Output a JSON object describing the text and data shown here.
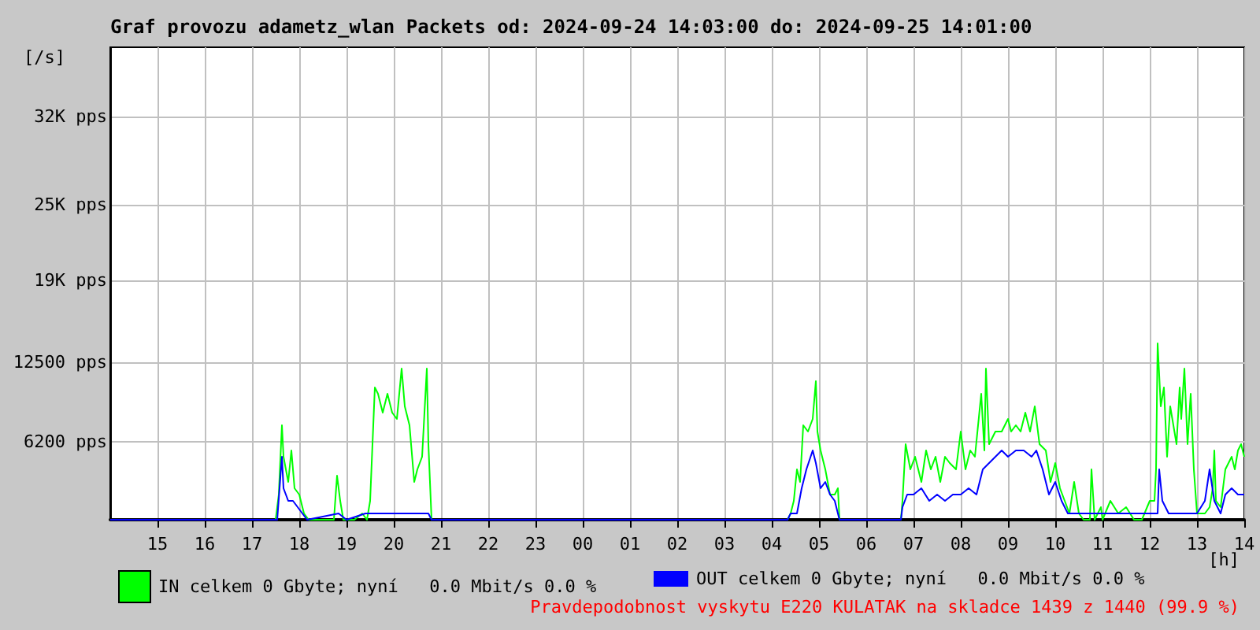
{
  "chart_data": {
    "type": "line",
    "title": "Graf provozu adametz_wlan Packets od: 2024-09-24 14:03:00 do: 2024-09-25 14:01:00",
    "xlabel": "[h]",
    "ylabel": "[/s]",
    "annotations": [
      "Pravdepodobnost vyskytu E220 KULATAK na skladce 1439 z 1440 (99.9 %)"
    ],
    "xlim": [
      "2024-09-24T14:00",
      "2024-09-25T14:00"
    ],
    "xticks": [
      {
        "value": "2024-09-24T15:00",
        "label": "15"
      },
      {
        "value": "2024-09-24T16:00",
        "label": "16"
      },
      {
        "value": "2024-09-24T17:00",
        "label": "17"
      },
      {
        "value": "2024-09-24T18:00",
        "label": "18"
      },
      {
        "value": "2024-09-24T19:00",
        "label": "19"
      },
      {
        "value": "2024-09-24T20:00",
        "label": "20"
      },
      {
        "value": "2024-09-24T21:00",
        "label": "21"
      },
      {
        "value": "2024-09-24T22:00",
        "label": "22"
      },
      {
        "value": "2024-09-24T23:00",
        "label": "23"
      },
      {
        "value": "2024-09-25T00:00",
        "label": "00"
      },
      {
        "value": "2024-09-25T01:00",
        "label": "01"
      },
      {
        "value": "2024-09-25T02:00",
        "label": "02"
      },
      {
        "value": "2024-09-25T03:00",
        "label": "03"
      },
      {
        "value": "2024-09-25T04:00",
        "label": "04"
      },
      {
        "value": "2024-09-25T05:00",
        "label": "05"
      },
      {
        "value": "2024-09-25T06:00",
        "label": "06"
      },
      {
        "value": "2024-09-25T07:00",
        "label": "07"
      },
      {
        "value": "2024-09-25T08:00",
        "label": "08"
      },
      {
        "value": "2024-09-25T09:00",
        "label": "09"
      },
      {
        "value": "2024-09-25T10:00",
        "label": "10"
      },
      {
        "value": "2024-09-25T11:00",
        "label": "11"
      },
      {
        "value": "2024-09-25T12:00",
        "label": "12"
      },
      {
        "value": "2024-09-25T13:00",
        "label": "13"
      },
      {
        "value": "2024-09-25T14:00",
        "label": "14"
      }
    ],
    "ylim": [
      0,
      37500
    ],
    "yticks": [
      {
        "value": 6200,
        "label": "6200 pps"
      },
      {
        "value": 12500,
        "label": "12500 pps"
      },
      {
        "value": 19000,
        "label": "19K pps"
      },
      {
        "value": 25000,
        "label": "25K pps"
      },
      {
        "value": 32000,
        "label": "32K pps"
      }
    ],
    "grid": true,
    "legend": "bottom",
    "marker": "none",
    "series": [
      {
        "name": "IN celkem 0 Gbyte; nyní   0.0 Mbit/s 0.0 %",
        "color": "#00ff00",
        "x": [
          "2024-09-24T14:00",
          "2024-09-24T17:30",
          "2024-09-24T17:34",
          "2024-09-24T17:38",
          "2024-09-24T17:40",
          "2024-09-24T17:46",
          "2024-09-24T17:50",
          "2024-09-24T17:54",
          "2024-09-24T18:00",
          "2024-09-24T18:06",
          "2024-09-24T18:12",
          "2024-09-24T18:44",
          "2024-09-24T18:48",
          "2024-09-24T18:52",
          "2024-09-24T18:56",
          "2024-09-24T19:10",
          "2024-09-24T19:20",
          "2024-09-24T19:26",
          "2024-09-24T19:30",
          "2024-09-24T19:34",
          "2024-09-24T19:36",
          "2024-09-24T19:40",
          "2024-09-24T19:46",
          "2024-09-24T19:52",
          "2024-09-24T19:58",
          "2024-09-24T20:04",
          "2024-09-24T20:10",
          "2024-09-24T20:14",
          "2024-09-24T20:20",
          "2024-09-24T20:26",
          "2024-09-24T20:30",
          "2024-09-24T20:36",
          "2024-09-24T20:42",
          "2024-09-24T20:44",
          "2024-09-24T20:48",
          "2024-09-25T04:20",
          "2024-09-25T04:24",
          "2024-09-25T04:28",
          "2024-09-25T04:32",
          "2024-09-25T04:36",
          "2024-09-25T04:40",
          "2024-09-25T04:46",
          "2024-09-25T04:52",
          "2024-09-25T04:56",
          "2024-09-25T04:58",
          "2024-09-25T05:02",
          "2024-09-25T05:08",
          "2024-09-25T05:14",
          "2024-09-25T05:20",
          "2024-09-25T05:24",
          "2024-09-25T05:26",
          "2024-09-25T06:44",
          "2024-09-25T06:46",
          "2024-09-25T06:50",
          "2024-09-25T06:56",
          "2024-09-25T07:02",
          "2024-09-25T07:10",
          "2024-09-25T07:16",
          "2024-09-25T07:22",
          "2024-09-25T07:28",
          "2024-09-25T07:34",
          "2024-09-25T07:40",
          "2024-09-25T07:46",
          "2024-09-25T07:54",
          "2024-09-25T08:00",
          "2024-09-25T08:06",
          "2024-09-25T08:12",
          "2024-09-25T08:18",
          "2024-09-25T08:26",
          "2024-09-25T08:30",
          "2024-09-25T08:32",
          "2024-09-25T08:36",
          "2024-09-25T08:44",
          "2024-09-25T08:52",
          "2024-09-25T09:00",
          "2024-09-25T09:04",
          "2024-09-25T09:10",
          "2024-09-25T09:16",
          "2024-09-25T09:22",
          "2024-09-25T09:28",
          "2024-09-25T09:34",
          "2024-09-25T09:40",
          "2024-09-25T09:48",
          "2024-09-25T09:54",
          "2024-09-25T10:00",
          "2024-09-25T10:06",
          "2024-09-25T10:12",
          "2024-09-25T10:18",
          "2024-09-25T10:24",
          "2024-09-25T10:30",
          "2024-09-25T10:36",
          "2024-09-25T10:44",
          "2024-09-25T10:46",
          "2024-09-25T10:50",
          "2024-09-25T10:58",
          "2024-09-25T11:00",
          "2024-09-25T11:10",
          "2024-09-25T11:20",
          "2024-09-25T11:30",
          "2024-09-25T11:40",
          "2024-09-25T11:50",
          "2024-09-25T12:00",
          "2024-09-25T12:06",
          "2024-09-25T12:08",
          "2024-09-25T12:10",
          "2024-09-25T12:14",
          "2024-09-25T12:18",
          "2024-09-25T12:22",
          "2024-09-25T12:26",
          "2024-09-25T12:30",
          "2024-09-25T12:34",
          "2024-09-25T12:38",
          "2024-09-25T12:40",
          "2024-09-25T12:44",
          "2024-09-25T12:48",
          "2024-09-25T12:52",
          "2024-09-25T12:56",
          "2024-09-25T13:00",
          "2024-09-25T13:10",
          "2024-09-25T13:16",
          "2024-09-25T13:20",
          "2024-09-25T13:22",
          "2024-09-25T13:24",
          "2024-09-25T13:30",
          "2024-09-25T13:36",
          "2024-09-25T13:40",
          "2024-09-25T13:44",
          "2024-09-25T13:48",
          "2024-09-25T13:52",
          "2024-09-25T13:56",
          "2024-09-25T14:00"
        ],
        "values": [
          0,
          0,
          2000,
          7500,
          5000,
          3000,
          5500,
          2500,
          2000,
          500,
          0,
          0,
          3500,
          1500,
          0,
          0,
          500,
          0,
          1500,
          7500,
          10500,
          10000,
          8500,
          10000,
          8500,
          8000,
          12000,
          9000,
          7500,
          3000,
          4000,
          5000,
          12000,
          6000,
          0,
          0,
          500,
          1500,
          4000,
          3000,
          7500,
          7000,
          8000,
          11000,
          7000,
          5500,
          4000,
          2000,
          2000,
          2500,
          0,
          0,
          1500,
          6000,
          4000,
          5000,
          3000,
          5500,
          4000,
          5000,
          3000,
          5000,
          4500,
          4000,
          7000,
          4000,
          5500,
          5000,
          10000,
          5500,
          12000,
          6000,
          7000,
          7000,
          8000,
          7000,
          7500,
          7000,
          8500,
          7000,
          9000,
          6000,
          5500,
          3000,
          4500,
          2500,
          1500,
          500,
          3000,
          500,
          0,
          0,
          4000,
          0,
          1000,
          0,
          1500,
          500,
          1000,
          0,
          0,
          1500,
          1500,
          4000,
          14000,
          9000,
          10500,
          5000,
          9000,
          7500,
          6000,
          10500,
          8000,
          12000,
          6000,
          10000,
          4000,
          500,
          500,
          1000,
          2500,
          5500,
          1500,
          1000,
          4000,
          4500,
          5000,
          4000,
          5500,
          6000,
          5000
        ]
      },
      {
        "name": "OUT celkem 0 Gbyte; nyní   0.0 Mbit/s 0.0 %",
        "color": "#0000ff",
        "x": [
          "2024-09-24T14:00",
          "2024-09-24T17:32",
          "2024-09-24T17:38",
          "2024-09-24T17:40",
          "2024-09-24T17:46",
          "2024-09-24T17:52",
          "2024-09-24T17:58",
          "2024-09-24T18:04",
          "2024-09-24T18:10",
          "2024-09-24T18:50",
          "2024-09-24T19:00",
          "2024-09-24T19:24",
          "2024-09-24T19:30",
          "2024-09-24T19:36",
          "2024-09-24T20:00",
          "2024-09-24T20:20",
          "2024-09-24T20:30",
          "2024-09-24T20:40",
          "2024-09-24T20:44",
          "2024-09-24T20:48",
          "2024-09-25T04:20",
          "2024-09-25T04:24",
          "2024-09-25T04:32",
          "2024-09-25T04:38",
          "2024-09-25T04:44",
          "2024-09-25T04:52",
          "2024-09-25T04:56",
          "2024-09-25T05:02",
          "2024-09-25T05:08",
          "2024-09-25T05:14",
          "2024-09-25T05:20",
          "2024-09-25T05:26",
          "2024-09-25T06:44",
          "2024-09-25T06:46",
          "2024-09-25T06:52",
          "2024-09-25T07:00",
          "2024-09-25T07:10",
          "2024-09-25T07:20",
          "2024-09-25T07:30",
          "2024-09-25T07:40",
          "2024-09-25T07:50",
          "2024-09-25T08:00",
          "2024-09-25T08:10",
          "2024-09-25T08:20",
          "2024-09-25T08:28",
          "2024-09-25T08:36",
          "2024-09-25T08:44",
          "2024-09-25T08:52",
          "2024-09-25T09:00",
          "2024-09-25T09:10",
          "2024-09-25T09:20",
          "2024-09-25T09:30",
          "2024-09-25T09:36",
          "2024-09-25T09:44",
          "2024-09-25T09:52",
          "2024-09-25T10:00",
          "2024-09-25T10:08",
          "2024-09-25T10:16",
          "2024-09-25T10:30",
          "2024-09-25T11:00",
          "2024-09-25T11:40",
          "2024-09-25T12:10",
          "2024-09-25T12:12",
          "2024-09-25T12:16",
          "2024-09-25T12:24",
          "2024-09-25T12:32",
          "2024-09-25T12:40",
          "2024-09-25T13:00",
          "2024-09-25T13:10",
          "2024-09-25T13:16",
          "2024-09-25T13:22",
          "2024-09-25T13:30",
          "2024-09-25T13:36",
          "2024-09-25T13:44",
          "2024-09-25T13:52",
          "2024-09-25T14:00"
        ],
        "values": [
          0,
          0,
          5000,
          2500,
          1500,
          1500,
          1000,
          500,
          0,
          500,
          0,
          500,
          500,
          500,
          500,
          500,
          500,
          500,
          500,
          0,
          0,
          500,
          500,
          2500,
          4000,
          5500,
          4500,
          2500,
          3000,
          2000,
          1500,
          0,
          0,
          1000,
          2000,
          2000,
          2500,
          1500,
          2000,
          1500,
          2000,
          2000,
          2500,
          2000,
          4000,
          4500,
          5000,
          5500,
          5000,
          5500,
          5500,
          5000,
          5500,
          4000,
          2000,
          3000,
          1500,
          500,
          500,
          500,
          500,
          500,
          4000,
          1500,
          500,
          500,
          500,
          500,
          1500,
          4000,
          1500,
          500,
          2000,
          2500,
          2000,
          2000
        ]
      }
    ]
  }
}
